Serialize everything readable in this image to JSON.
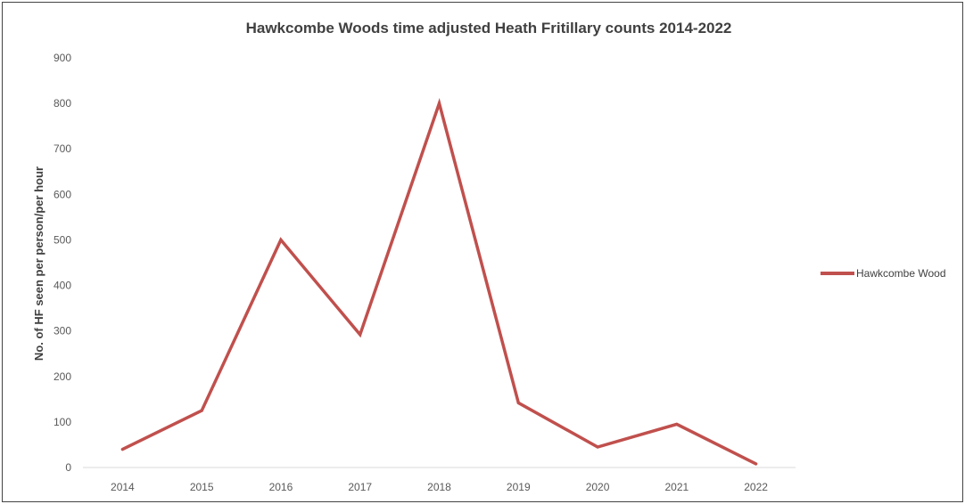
{
  "chart_data": {
    "type": "line",
    "title": "Hawkcombe Woods time adjusted Heath Fritillary counts 2014-2022",
    "ylabel": "No. of HF seen per person/per hour",
    "xlabel": "",
    "categories": [
      "2014",
      "2015",
      "2016",
      "2017",
      "2018",
      "2019",
      "2020",
      "2021",
      "2022"
    ],
    "ylim": [
      0,
      900
    ],
    "yticks": [
      "0",
      "100",
      "200",
      "300",
      "400",
      "500",
      "600",
      "700",
      "800",
      "900"
    ],
    "grid": false,
    "legend_position": "right",
    "series": [
      {
        "name": "Hawkcombe Wood",
        "color": "#C0504D",
        "values": [
          40,
          125,
          500,
          292,
          800,
          142,
          45,
          95,
          8
        ]
      }
    ]
  }
}
